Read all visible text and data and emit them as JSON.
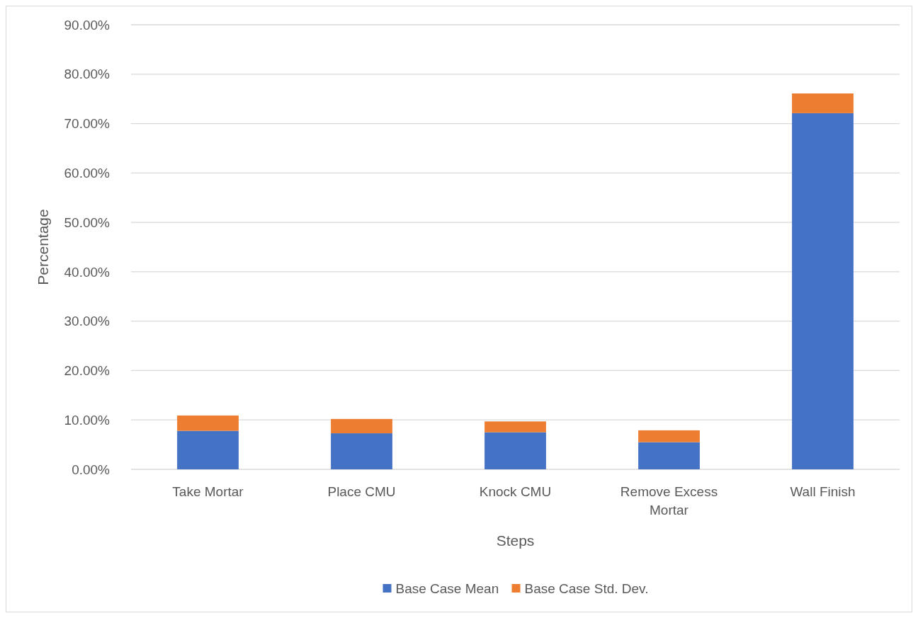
{
  "chart_data": {
    "type": "bar",
    "stacked": true,
    "xlabel": "Steps",
    "ylabel": "Percentage",
    "categories": [
      "Take Mortar",
      "Place CMU",
      "Knock CMU",
      "Remove Excess Mortar",
      "Wall Finish"
    ],
    "series": [
      {
        "name": "Base Case Mean",
        "color": "#4472c4",
        "values": [
          7.8,
          7.3,
          7.5,
          5.5,
          72.1
        ]
      },
      {
        "name": "Base Case Std. Dev.",
        "color": "#ed7d31",
        "values": [
          3.1,
          2.9,
          2.2,
          2.4,
          4.0
        ]
      }
    ],
    "ylim": [
      0,
      90
    ],
    "yticks": [
      {
        "value": 0,
        "label": "0.00%"
      },
      {
        "value": 10,
        "label": "10.00%"
      },
      {
        "value": 20,
        "label": "20.00%"
      },
      {
        "value": 30,
        "label": "30.00%"
      },
      {
        "value": 40,
        "label": "40.00%"
      },
      {
        "value": 50,
        "label": "50.00%"
      },
      {
        "value": 60,
        "label": "60.00%"
      },
      {
        "value": 70,
        "label": "70.00%"
      },
      {
        "value": 80,
        "label": "80.00%"
      },
      {
        "value": 90,
        "label": "90.00%"
      }
    ],
    "grid": "y",
    "legend": "bottom"
  }
}
